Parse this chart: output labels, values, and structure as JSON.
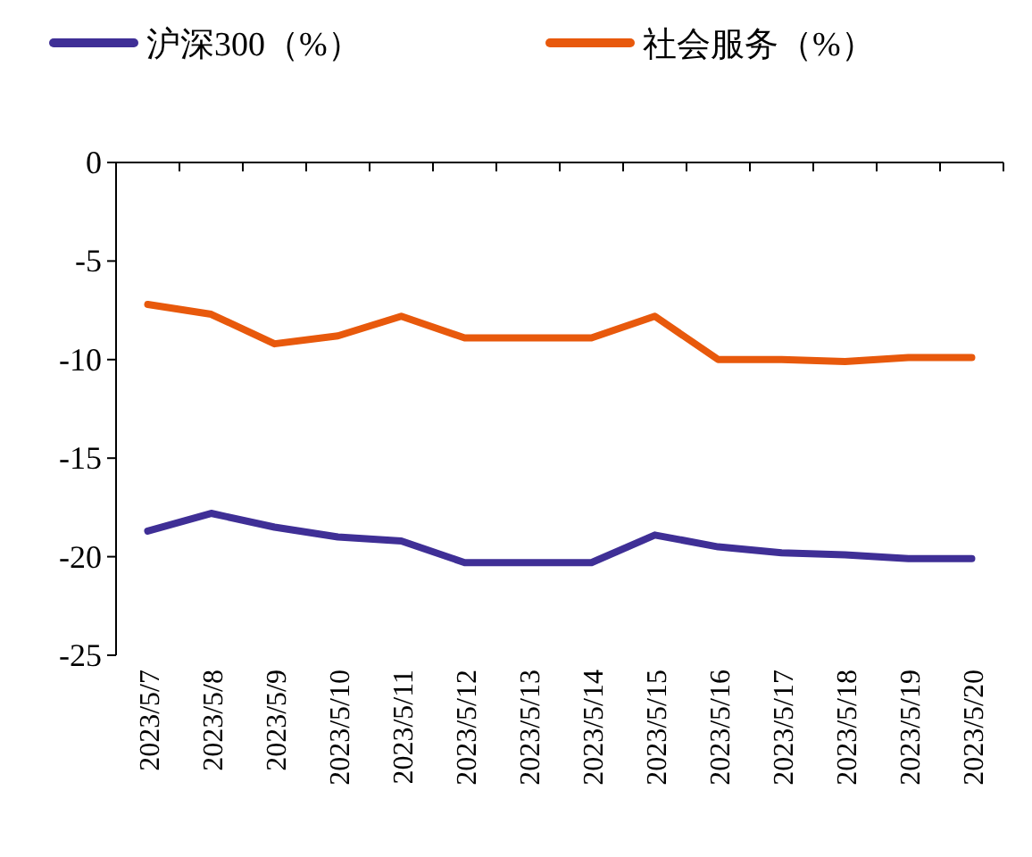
{
  "chart_data": {
    "type": "line",
    "legend": "top",
    "grid": false,
    "line_style": "solid",
    "marker": "none",
    "categories": [
      "2023/5/7",
      "2023/5/8",
      "2023/5/9",
      "2023/5/10",
      "2023/5/11",
      "2023/5/12",
      "2023/5/13",
      "2023/5/14",
      "2023/5/15",
      "2023/5/16",
      "2023/5/17",
      "2023/5/18",
      "2023/5/19",
      "2023/5/20"
    ],
    "ylim": [
      -25,
      0
    ],
    "yticks": [
      -25,
      -20,
      -15,
      -10,
      -5,
      0
    ],
    "series": [
      {
        "name": "沪深300（%）",
        "color": "#3f2f96",
        "values": [
          -18.7,
          -17.8,
          -18.5,
          -19.0,
          -19.2,
          -20.3,
          -20.3,
          -20.3,
          -18.9,
          -19.5,
          -19.8,
          -19.9,
          -20.1,
          -20.1
        ]
      },
      {
        "name": "社会服务（%）",
        "color": "#e8590c",
        "values": [
          -7.2,
          -7.7,
          -9.2,
          -8.8,
          -7.8,
          -8.9,
          -8.9,
          -8.9,
          -7.8,
          -10.0,
          -10.0,
          -10.1,
          -9.9,
          -9.9
        ]
      }
    ]
  }
}
